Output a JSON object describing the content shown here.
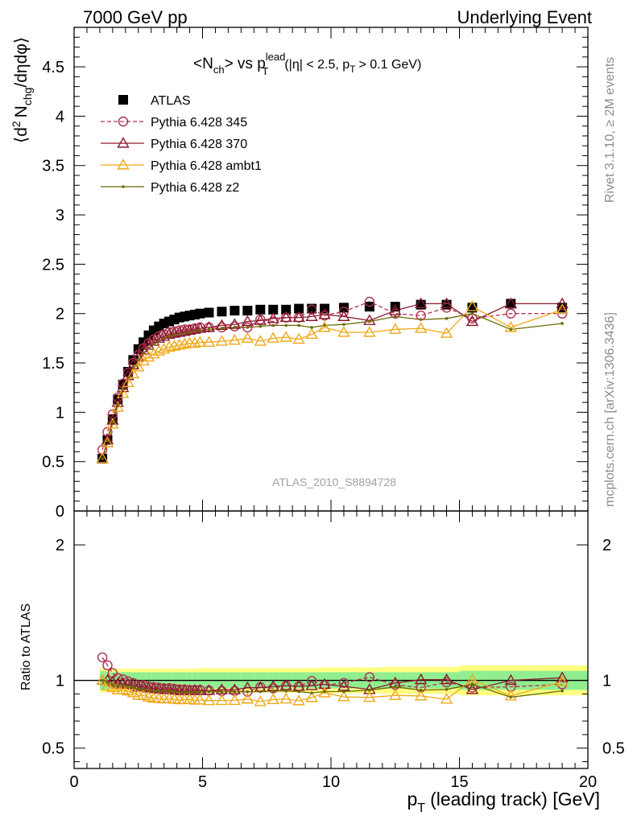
{
  "header": {
    "left": "7000 GeV pp",
    "right": "Underlying Event"
  },
  "side_labels": {
    "top": "Rivet 3.1.10, ≥ 2M events",
    "bottom": "mcplots.cern.ch [arXiv:1306.3436]"
  },
  "watermark": "ATLAS_2010_S8894728",
  "chart_data": [
    {
      "type": "scatter",
      "panel": "main",
      "title": "<N_ch> vs p_T^lead (|η| < 2.5, p_T > 0.1 GeV)",
      "title_parts": {
        "a": "<N",
        "a_sub": "ch",
        "b": "> vs p",
        "b_sup": "lead",
        "b_sub": "T",
        "c": "(|η| < 2.5, p",
        "c_sub": "T",
        "d": "> 0.1 GeV)"
      },
      "ylabel": "⟨d² N_chg/dηdφ⟩",
      "ylabel_parts": {
        "a": "⟨d",
        "a_sup": "2",
        "b": "N",
        "b_sub": "chg",
        "c": "/dηdφ⟩"
      },
      "xlim": [
        0,
        20
      ],
      "ylim": [
        0,
        4.9
      ],
      "yticks": [
        0.5,
        1,
        1.5,
        2,
        2.5,
        3,
        3.5,
        4,
        4.5
      ],
      "ytick_labels": [
        "0.5",
        "1",
        "1.5",
        "2",
        "2.5",
        "3",
        "3.5",
        "4",
        "4.5"
      ],
      "ytick_zero_label": "0",
      "legend_placement": "top-left",
      "x": [
        1.1,
        1.3,
        1.5,
        1.7,
        1.9,
        2.1,
        2.3,
        2.5,
        2.7,
        2.9,
        3.1,
        3.3,
        3.5,
        3.7,
        3.9,
        4.1,
        4.3,
        4.5,
        4.7,
        4.9,
        5.25,
        5.75,
        6.25,
        6.75,
        7.25,
        7.75,
        8.25,
        8.75,
        9.25,
        9.75,
        10.5,
        11.5,
        12.5,
        13.5,
        14.5,
        15.5,
        17.0,
        19.0
      ],
      "series": [
        {
          "name": "ATLAS",
          "color": "#000000",
          "marker": "square",
          "style": "none",
          "y": [
            0.53,
            0.72,
            0.93,
            1.13,
            1.28,
            1.41,
            1.53,
            1.64,
            1.71,
            1.78,
            1.83,
            1.87,
            1.9,
            1.92,
            1.94,
            1.96,
            1.97,
            1.98,
            1.99,
            2.0,
            2.01,
            2.02,
            2.03,
            2.03,
            2.04,
            2.04,
            2.04,
            2.05,
            2.05,
            2.05,
            2.06,
            2.07,
            2.07,
            2.09,
            2.09,
            2.06,
            2.1,
            2.06
          ]
        },
        {
          "name": "Pythia 6.428 345",
          "color": "#b03050",
          "marker": "circle",
          "style": "dashed",
          "y": [
            0.62,
            0.8,
            0.98,
            1.15,
            1.29,
            1.4,
            1.5,
            1.58,
            1.65,
            1.7,
            1.74,
            1.77,
            1.79,
            1.81,
            1.82,
            1.83,
            1.84,
            1.84,
            1.85,
            1.86,
            1.86,
            1.86,
            1.87,
            1.86,
            1.94,
            1.92,
            1.96,
            1.96,
            2.04,
            1.98,
            2.02,
            2.12,
            2.0,
            1.98,
            2.06,
            1.95,
            2.0,
            2.0
          ]
        },
        {
          "name": "Pythia 6.428 370",
          "color": "#8b1a2e",
          "marker": "triangle",
          "style": "solid",
          "y": [
            0.53,
            0.72,
            0.92,
            1.1,
            1.25,
            1.37,
            1.48,
            1.56,
            1.63,
            1.68,
            1.72,
            1.75,
            1.77,
            1.79,
            1.8,
            1.81,
            1.82,
            1.83,
            1.84,
            1.85,
            1.86,
            1.88,
            1.89,
            1.92,
            1.93,
            1.95,
            1.96,
            1.96,
            1.97,
            1.99,
            1.97,
            1.93,
            2.03,
            2.1,
            2.1,
            1.92,
            2.1,
            2.1
          ]
        },
        {
          "name": "Pythia 6.428 ambt1",
          "color": "#f0a818",
          "marker": "triangle",
          "style": "solid",
          "y": [
            0.53,
            0.69,
            0.88,
            1.05,
            1.19,
            1.3,
            1.39,
            1.46,
            1.52,
            1.56,
            1.59,
            1.62,
            1.64,
            1.66,
            1.67,
            1.68,
            1.69,
            1.7,
            1.7,
            1.71,
            1.71,
            1.72,
            1.73,
            1.75,
            1.72,
            1.75,
            1.76,
            1.74,
            1.79,
            1.86,
            1.81,
            1.81,
            1.84,
            1.85,
            1.8,
            2.07,
            1.86,
            2.04
          ]
        },
        {
          "name": "Pythia 6.428 z2",
          "color": "#6b6b00",
          "marker": "dot",
          "style": "solid",
          "y": [
            0.53,
            0.71,
            0.9,
            1.08,
            1.23,
            1.35,
            1.45,
            1.53,
            1.6,
            1.65,
            1.69,
            1.72,
            1.75,
            1.77,
            1.78,
            1.79,
            1.8,
            1.81,
            1.82,
            1.83,
            1.84,
            1.85,
            1.86,
            1.86,
            1.87,
            1.88,
            1.88,
            1.88,
            1.86,
            1.88,
            1.89,
            1.92,
            1.97,
            1.94,
            1.95,
            2.0,
            1.84,
            1.9
          ]
        }
      ]
    },
    {
      "type": "scatter",
      "panel": "ratio",
      "ylabel": "Ratio to ATLAS",
      "xlabel": "p_T (leading track) [GeV]",
      "xlabel_parts": {
        "a": "p",
        "a_sub": "T",
        "b": "(leading track) [GeV]"
      },
      "xlim": [
        0,
        20
      ],
      "ylim": [
        0.35,
        2.25
      ],
      "xticks": [
        0,
        5,
        10,
        15,
        20
      ],
      "xtick_labels": [
        "0",
        "5",
        "10",
        "15",
        "20"
      ],
      "yticks": [
        0.5,
        1,
        2
      ],
      "ytick_labels": [
        "0.5",
        "1",
        "2"
      ],
      "bands": {
        "inner_color": "#90ee90",
        "outer_color": "#ffff80",
        "x_edges": [
          1.0,
          1.2,
          1.4,
          1.6,
          1.8,
          2.0,
          2.2,
          2.4,
          2.6,
          2.8,
          3.0,
          3.2,
          3.4,
          3.6,
          3.8,
          4.0,
          4.2,
          4.4,
          4.6,
          4.8,
          5.0,
          5.5,
          6.0,
          6.5,
          7.0,
          7.5,
          8.0,
          8.5,
          9.0,
          9.5,
          10.0,
          11.0,
          12.0,
          13.0,
          14.0,
          15.0,
          16.0,
          18.0,
          20.0
        ],
        "inner_half_width": [
          0.07,
          0.065,
          0.06,
          0.06,
          0.06,
          0.06,
          0.06,
          0.06,
          0.06,
          0.06,
          0.06,
          0.06,
          0.06,
          0.06,
          0.06,
          0.06,
          0.06,
          0.06,
          0.06,
          0.06,
          0.06,
          0.06,
          0.06,
          0.06,
          0.06,
          0.06,
          0.06,
          0.06,
          0.06,
          0.06,
          0.06,
          0.06,
          0.06,
          0.06,
          0.06,
          0.07,
          0.07,
          0.07
        ],
        "outer_half_width": [
          0.09,
          0.085,
          0.085,
          0.085,
          0.085,
          0.085,
          0.085,
          0.085,
          0.085,
          0.085,
          0.085,
          0.085,
          0.085,
          0.085,
          0.085,
          0.085,
          0.085,
          0.085,
          0.085,
          0.09,
          0.09,
          0.09,
          0.09,
          0.09,
          0.09,
          0.09,
          0.09,
          0.09,
          0.09,
          0.095,
          0.095,
          0.095,
          0.1,
          0.1,
          0.1,
          0.11,
          0.11,
          0.11
        ]
      }
    }
  ]
}
